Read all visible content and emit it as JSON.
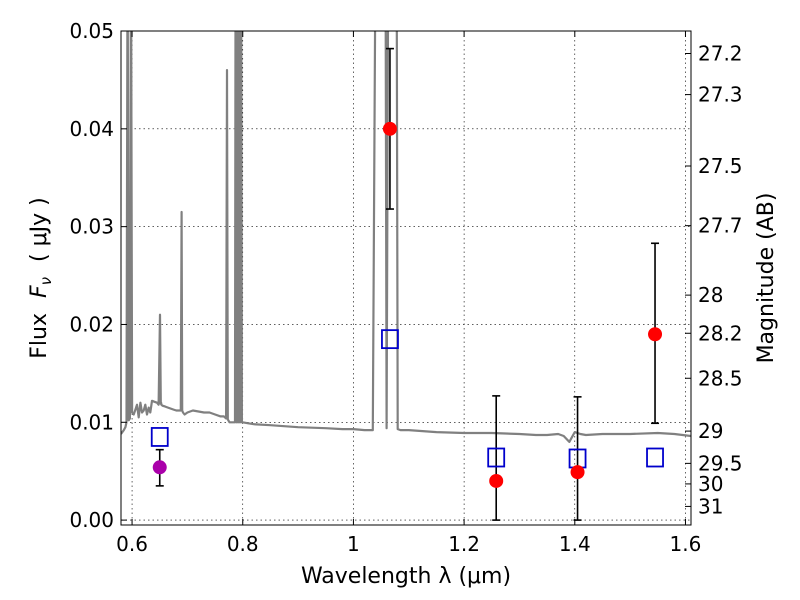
{
  "chart_data": {
    "type": "scatter",
    "xlabel": "Wavelength  λ (μm)",
    "ylabel_prefix": "Flux",
    "ylabel_symbol": "F",
    "ylabel_subscript": "ν",
    "ylabel_units": "( μJy )",
    "right_ylabel": "Magnitude (AB)",
    "xlim": [
      0.58,
      1.61
    ],
    "ylim": [
      -0.0005,
      0.05
    ],
    "x_ticks": [
      0.6,
      0.8,
      1.0,
      1.2,
      1.4,
      1.6
    ],
    "x_tick_labels": [
      "0.6",
      "0.8",
      "1",
      "1.2",
      "1.4",
      "1.6"
    ],
    "y_ticks": [
      0.0,
      0.01,
      0.02,
      0.03,
      0.04,
      0.05
    ],
    "y_tick_labels": [
      "0.00",
      "0.01",
      "0.02",
      "0.03",
      "0.04",
      "0.05"
    ],
    "right_ticks": [
      {
        "flux": 0.0477,
        "label": "27.2"
      },
      {
        "flux": 0.0435,
        "label": "27.3"
      },
      {
        "flux": 0.0362,
        "label": "27.5"
      },
      {
        "flux": 0.0301,
        "label": "27.7"
      },
      {
        "flux": 0.023,
        "label": "28"
      },
      {
        "flux": 0.0191,
        "label": "28.2"
      },
      {
        "flux": 0.0145,
        "label": "28.5"
      },
      {
        "flux": 0.0091,
        "label": "29"
      },
      {
        "flux": 0.0058,
        "label": "29.5"
      },
      {
        "flux": 0.0037,
        "label": "30"
      },
      {
        "flux": 0.0014,
        "label": "31"
      }
    ],
    "grid": true,
    "colors": {
      "spectrum": "#808080",
      "photometry": "#ff0000",
      "purple_point": "#aa00aa",
      "model": "#0000cc",
      "errorbar": "#000000"
    },
    "spectrum": {
      "x": [
        0.58,
        0.585,
        0.588,
        0.59,
        0.592,
        0.594,
        0.596,
        0.598,
        0.6,
        0.603,
        0.606,
        0.609,
        0.612,
        0.615,
        0.618,
        0.621,
        0.624,
        0.627,
        0.63,
        0.633,
        0.636,
        0.64,
        0.645,
        0.648,
        0.6505,
        0.652,
        0.6525,
        0.653,
        0.655,
        0.66,
        0.665,
        0.67,
        0.675,
        0.68,
        0.685,
        0.688,
        0.6895,
        0.6905,
        0.692,
        0.695,
        0.7,
        0.71,
        0.72,
        0.73,
        0.74,
        0.75,
        0.76,
        0.766,
        0.77,
        0.7715,
        0.773,
        0.776,
        0.78,
        0.784,
        0.786,
        0.787,
        0.7885,
        0.789,
        0.79,
        0.791,
        0.7925,
        0.7935,
        0.794,
        0.795,
        0.796,
        0.797,
        0.7985,
        0.8,
        0.81,
        0.82,
        0.85,
        0.9,
        0.95,
        0.98,
        1.0,
        1.02,
        1.035,
        1.04,
        1.042,
        1.05,
        1.058,
        1.06,
        1.063,
        1.066,
        1.07,
        1.078,
        1.08,
        1.085,
        1.09,
        1.1,
        1.15,
        1.2,
        1.25,
        1.3,
        1.33,
        1.35,
        1.37,
        1.38,
        1.39,
        1.4,
        1.41,
        1.42,
        1.45,
        1.5,
        1.55,
        1.58,
        1.61
      ],
      "y": [
        0.0088,
        0.0092,
        0.0095,
        0.01,
        0.06,
        0.0102,
        0.0104,
        0.06,
        0.011,
        0.0108,
        0.0113,
        0.0118,
        0.0105,
        0.012,
        0.011,
        0.0112,
        0.0118,
        0.0108,
        0.0115,
        0.011,
        0.0122,
        0.0121,
        0.012,
        0.0118,
        0.021,
        0.0119,
        0.012,
        0.0118,
        0.0117,
        0.0116,
        0.0115,
        0.0114,
        0.0113,
        0.0112,
        0.0112,
        0.0112,
        0.0315,
        0.0112,
        0.011,
        0.0108,
        0.011,
        0.0112,
        0.0111,
        0.011,
        0.011,
        0.0108,
        0.0106,
        0.0106,
        0.0104,
        0.046,
        0.0103,
        0.01,
        0.01,
        0.01,
        0.01,
        0.06,
        0.01,
        0.06,
        0.01,
        0.06,
        0.01,
        0.06,
        0.01,
        0.06,
        0.01,
        0.06,
        0.01,
        0.01,
        0.0099,
        0.0098,
        0.0097,
        0.0095,
        0.0094,
        0.0093,
        0.0093,
        0.0092,
        0.0092,
        0.06,
        0.06,
        0.06,
        0.06,
        0.0094,
        0.06,
        0.06,
        0.06,
        0.06,
        0.0093,
        0.0092,
        0.0092,
        0.0092,
        0.009,
        0.0089,
        0.0089,
        0.0088,
        0.0087,
        0.0087,
        0.0088,
        0.0086,
        0.008,
        0.009,
        0.0088,
        0.0087,
        0.0088,
        0.0088,
        0.0089,
        0.0088,
        0.0086
      ]
    },
    "photometry": [
      {
        "x": 1.066,
        "y": 0.04,
        "err_low": 0.0318,
        "err_high": 0.0482,
        "color": "red"
      },
      {
        "x": 1.258,
        "y": 0.004,
        "err_low": 0.0,
        "err_high": 0.0127,
        "color": "red"
      },
      {
        "x": 1.405,
        "y": 0.0049,
        "err_low": 0.0,
        "err_high": 0.0126,
        "color": "red"
      },
      {
        "x": 1.545,
        "y": 0.019,
        "err_low": 0.0099,
        "err_high": 0.0283,
        "color": "red"
      },
      {
        "x": 0.65,
        "y": 0.0054,
        "err_low": 0.0035,
        "err_high": 0.0072,
        "color": "purple"
      }
    ],
    "model_points": [
      {
        "x": 0.65,
        "y": 0.0085
      },
      {
        "x": 1.066,
        "y": 0.0185
      },
      {
        "x": 1.258,
        "y": 0.0064
      },
      {
        "x": 1.405,
        "y": 0.0063
      },
      {
        "x": 1.545,
        "y": 0.0064
      }
    ]
  }
}
